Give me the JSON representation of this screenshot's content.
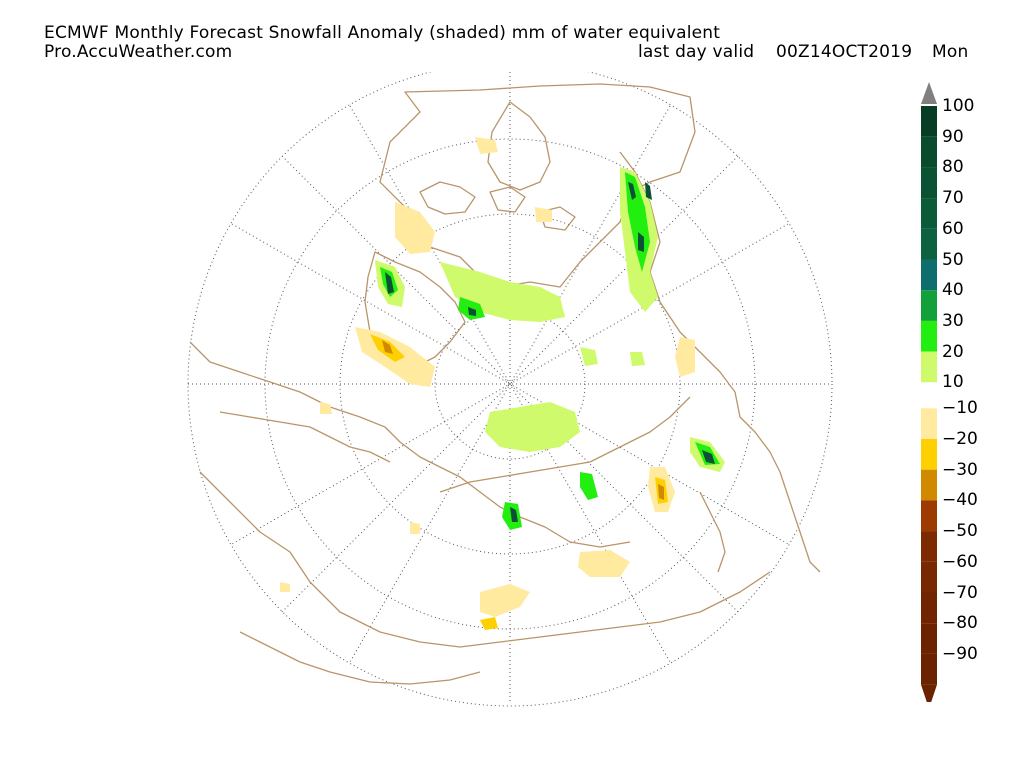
{
  "header": {
    "title": "ECMWF Monthly Forecast Snowfall Anomaly (shaded) mm of water equivalent",
    "source": "Pro.AccuWeather.com",
    "valid_label": "last day valid",
    "valid_date": "00Z14OCT2019",
    "valid_day": "Mon"
  },
  "map": {
    "projection": "north-polar-stereographic",
    "coastline_color": "#b8956a",
    "grid_color": "#555555"
  },
  "legend": {
    "positive": [
      {
        "label": "100",
        "color": "#083d25"
      },
      {
        "label": "90",
        "color": "#0a4a2d"
      },
      {
        "label": "80",
        "color": "#0b5133"
      },
      {
        "label": "70",
        "color": "#0b5a38"
      },
      {
        "label": "60",
        "color": "#0c6240"
      },
      {
        "label": "50",
        "color": "#0e6e6e"
      },
      {
        "label": "40",
        "color": "#12a03a"
      },
      {
        "label": "30",
        "color": "#22ee10"
      },
      {
        "label": "20",
        "color": "#cffa6b"
      },
      {
        "label": "10",
        "color": ""
      }
    ],
    "negative": [
      {
        "label": "−10",
        "color": "#ffeaa0"
      },
      {
        "label": "−20",
        "color": "#ffd000"
      },
      {
        "label": "−30",
        "color": "#d18a00"
      },
      {
        "label": "−40",
        "color": "#9c3a00"
      },
      {
        "label": "−50",
        "color": "#7d2a00"
      },
      {
        "label": "−60",
        "color": "#772800"
      },
      {
        "label": "−70",
        "color": "#702500"
      },
      {
        "label": "−80",
        "color": "#6c2400"
      },
      {
        "label": "−90",
        "color": "#6a2200"
      }
    ],
    "over_arrow_color": "#808080",
    "under_arrow_color": "#6a2200"
  }
}
